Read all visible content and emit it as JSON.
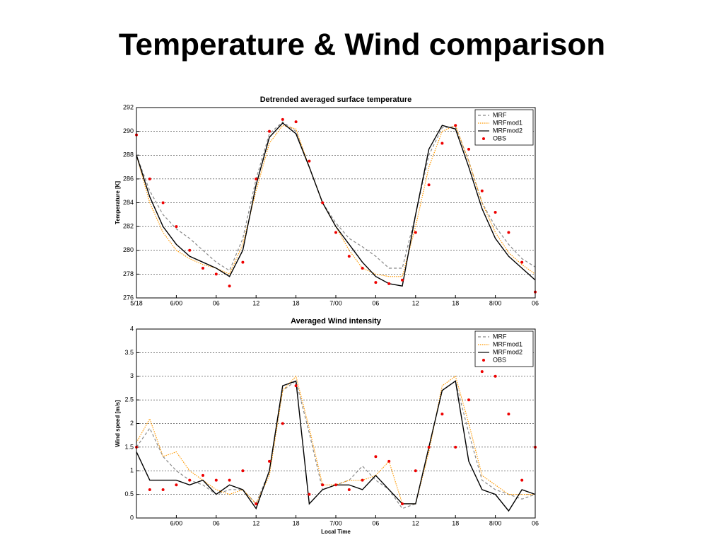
{
  "title": "Temperature & Wind comparison",
  "chart_data": [
    {
      "type": "line",
      "title": "Detrended averaged surface temperature",
      "y_label": "Temperature [K]",
      "x": [
        0,
        2,
        4,
        6,
        8,
        10,
        12,
        14,
        16,
        18,
        20,
        22,
        24,
        26,
        28,
        30,
        32,
        34,
        36,
        38,
        40,
        42,
        44,
        46,
        48,
        50,
        52,
        54,
        56,
        58,
        60
      ],
      "xlim": [
        0,
        60
      ],
      "xticks": [
        {
          "value": 0,
          "label": "5/18"
        },
        {
          "value": 6,
          "label": "6/00"
        },
        {
          "value": 12,
          "label": "06"
        },
        {
          "value": 18,
          "label": "12"
        },
        {
          "value": 24,
          "label": "18"
        },
        {
          "value": 30,
          "label": "7/00"
        },
        {
          "value": 36,
          "label": "06"
        },
        {
          "value": 42,
          "label": "12"
        },
        {
          "value": 48,
          "label": "18"
        },
        {
          "value": 54,
          "label": "8/00"
        },
        {
          "value": 60,
          "label": "06"
        }
      ],
      "ylim": [
        276,
        292
      ],
      "yticks": [
        276,
        278,
        280,
        282,
        284,
        286,
        288,
        290,
        292
      ],
      "grid": true,
      "legend": "upper right",
      "series": [
        {
          "name": "MRF",
          "color": "#888888",
          "style": "dashed",
          "values": [
            288,
            285,
            283,
            281.8,
            281,
            280,
            279,
            278.3,
            281,
            286,
            289.8,
            290.8,
            290,
            287,
            284,
            282.3,
            281,
            280.3,
            279.5,
            278.5,
            278.5,
            283,
            288,
            290.3,
            290.4,
            287.5,
            284,
            282,
            280.5,
            279.3,
            278.6
          ]
        },
        {
          "name": "MRFmod1",
          "color": "#ff9900",
          "style": "dotted",
          "values": [
            288,
            284,
            281.5,
            280,
            279.3,
            278.8,
            278.5,
            278,
            280.5,
            285,
            289,
            290.5,
            290.2,
            287,
            284,
            282,
            280,
            278.5,
            278,
            277.8,
            277.8,
            282,
            287,
            290,
            290.5,
            287.5,
            284,
            281.5,
            279.8,
            278.8,
            278
          ]
        },
        {
          "name": "MRFmod2",
          "color": "#000000",
          "style": "solid",
          "values": [
            288,
            284.5,
            282,
            280.5,
            279.5,
            279,
            278.5,
            277.8,
            280,
            285.5,
            289.5,
            290.7,
            289.8,
            287,
            284,
            282,
            280.5,
            279,
            277.8,
            277.2,
            277,
            283,
            288.5,
            290.5,
            290.2,
            287,
            283.5,
            281,
            279.5,
            278.5,
            277.5
          ]
        },
        {
          "name": "OBS",
          "color": "#ee0000",
          "style": "markers",
          "values": [
            289.7,
            286,
            284,
            282,
            280,
            278.5,
            278,
            277,
            279,
            286,
            290,
            291,
            290.8,
            287.5,
            284,
            281.5,
            279.5,
            278.5,
            277.3,
            277.2,
            277.5,
            281.5,
            285.5,
            289,
            290.5,
            288.5,
            285,
            283.2,
            281.5,
            279,
            276.5
          ]
        }
      ]
    },
    {
      "type": "line",
      "title": "Averaged Wind intensity",
      "y_label": "Wind speed [m/s]",
      "x_label": "Local Time",
      "x": [
        0,
        2,
        4,
        6,
        8,
        10,
        12,
        14,
        16,
        18,
        20,
        22,
        24,
        26,
        28,
        30,
        32,
        34,
        36,
        38,
        40,
        42,
        44,
        46,
        48,
        50,
        52,
        54,
        56,
        58,
        60
      ],
      "xlim": [
        0,
        60
      ],
      "xticks": [
        {
          "value": 6,
          "label": "6/00"
        },
        {
          "value": 12,
          "label": "06"
        },
        {
          "value": 18,
          "label": "12"
        },
        {
          "value": 24,
          "label": "18"
        },
        {
          "value": 30,
          "label": "7/00"
        },
        {
          "value": 36,
          "label": "06"
        },
        {
          "value": 42,
          "label": "12"
        },
        {
          "value": 48,
          "label": "18"
        },
        {
          "value": 54,
          "label": "8/00"
        },
        {
          "value": 60,
          "label": "06"
        }
      ],
      "ylim": [
        0,
        4
      ],
      "yticks": [
        0,
        0.5,
        1,
        1.5,
        2,
        2.5,
        3,
        3.5,
        4
      ],
      "grid": true,
      "legend": "upper right",
      "series": [
        {
          "name": "MRF",
          "color": "#888888",
          "style": "dashed",
          "values": [
            1.5,
            1.9,
            1.3,
            1.0,
            0.8,
            0.7,
            0.5,
            0.6,
            0.6,
            0.3,
            1.0,
            2.7,
            2.9,
            1.8,
            0.6,
            0.7,
            0.8,
            1.1,
            0.8,
            0.6,
            0.2,
            0.3,
            1.5,
            2.7,
            2.9,
            1.8,
            0.8,
            0.6,
            0.5,
            0.4,
            0.5
          ]
        },
        {
          "name": "MRFmod1",
          "color": "#ff9900",
          "style": "dotted",
          "values": [
            1.6,
            2.1,
            1.3,
            1.4,
            1.0,
            0.8,
            0.6,
            0.5,
            0.6,
            0.3,
            0.9,
            2.7,
            3.0,
            1.9,
            0.7,
            0.7,
            0.8,
            0.8,
            0.9,
            1.2,
            0.3,
            0.3,
            1.4,
            2.8,
            3.0,
            2.0,
            0.9,
            0.7,
            0.5,
            0.5,
            0.5
          ]
        },
        {
          "name": "MRFmod2",
          "color": "#000000",
          "style": "solid",
          "values": [
            1.4,
            0.8,
            0.8,
            0.8,
            0.7,
            0.8,
            0.5,
            0.7,
            0.6,
            0.2,
            1.0,
            2.8,
            2.9,
            0.3,
            0.6,
            0.7,
            0.7,
            0.6,
            0.9,
            0.6,
            0.3,
            0.3,
            1.5,
            2.7,
            2.9,
            1.2,
            0.6,
            0.5,
            0.15,
            0.6,
            0.5
          ]
        },
        {
          "name": "OBS",
          "color": "#ee0000",
          "style": "markers",
          "values": [
            1.5,
            0.6,
            0.6,
            0.7,
            0.8,
            0.9,
            0.8,
            0.8,
            1.0,
            0.3,
            1.2,
            2.0,
            2.8,
            0.5,
            0.7,
            0.7,
            0.6,
            0.8,
            1.3,
            1.2,
            0.3,
            1.0,
            1.5,
            2.2,
            1.5,
            2.5,
            3.1,
            3.0,
            2.2,
            0.8,
            1.5
          ]
        }
      ]
    }
  ]
}
